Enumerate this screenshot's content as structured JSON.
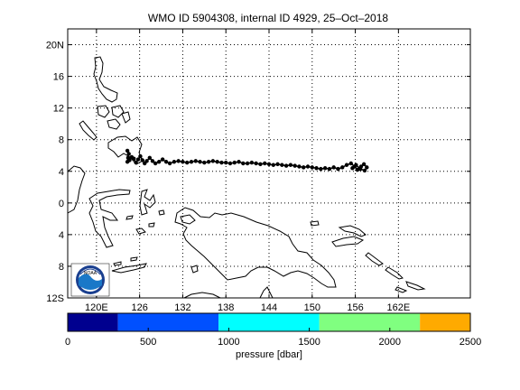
{
  "title": "WMO ID 5904308, internal ID 4929, 25–Oct–2018",
  "map": {
    "lon_range": [
      116,
      172
    ],
    "lat_range": [
      -12,
      22
    ],
    "grid": "dotted",
    "lat_ticks": [
      {
        "value": 20,
        "label": "20N"
      },
      {
        "value": 16,
        "label": "16"
      },
      {
        "value": 12,
        "label": "12"
      },
      {
        "value": 8,
        "label": "8"
      },
      {
        "value": 4,
        "label": "4"
      },
      {
        "value": 0,
        "label": "0"
      },
      {
        "value": -4,
        "label": "4"
      },
      {
        "value": -8,
        "label": "8"
      },
      {
        "value": -12,
        "label": "12S"
      }
    ],
    "lon_ticks": [
      {
        "value": 120,
        "label": "120E"
      },
      {
        "value": 126,
        "label": "126"
      },
      {
        "value": 132,
        "label": "132"
      },
      {
        "value": 138,
        "label": "138"
      },
      {
        "value": 144,
        "label": "144"
      },
      {
        "value": 150,
        "label": "150"
      },
      {
        "value": 156,
        "label": "156"
      },
      {
        "value": 162,
        "label": "162E"
      }
    ],
    "coastline_color": "#000000",
    "logo": {
      "name": "noaa-logo",
      "text": "NOAA"
    }
  },
  "colorbar": {
    "label": "pressure [dbar]",
    "ticks": [
      "0",
      "500",
      "1000",
      "1500",
      "2000",
      "2500"
    ],
    "range": [
      0,
      2500
    ],
    "segments": [
      {
        "from": 0,
        "to": 312,
        "color": "#00008f"
      },
      {
        "from": 312,
        "to": 937,
        "color": "#0050ff"
      },
      {
        "from": 937,
        "to": 1562,
        "color": "#00ffff"
      },
      {
        "from": 1562,
        "to": 2187,
        "color": "#80ff80"
      },
      {
        "from": 2187,
        "to": 2500,
        "color": "#ffaa00"
      }
    ]
  },
  "trajectory": {
    "color": "#000000",
    "points": [
      [
        124.3,
        6.6
      ],
      [
        124.5,
        6.2
      ],
      [
        124.4,
        5.7
      ],
      [
        124.3,
        5.2
      ],
      [
        124.6,
        5.4
      ],
      [
        124.9,
        5.8
      ],
      [
        125.2,
        5.6
      ],
      [
        125.5,
        5.1
      ],
      [
        125.8,
        5.5
      ],
      [
        126.1,
        5.9
      ],
      [
        126.4,
        5.4
      ],
      [
        126.7,
        5.0
      ],
      [
        127.0,
        5.3
      ],
      [
        127.4,
        5.7
      ],
      [
        127.8,
        5.3
      ],
      [
        128.2,
        5.0
      ],
      [
        128.7,
        5.2
      ],
      [
        129.2,
        5.5
      ],
      [
        129.7,
        5.2
      ],
      [
        130.2,
        5.0
      ],
      [
        130.8,
        5.2
      ],
      [
        131.4,
        5.3
      ],
      [
        132.0,
        5.2
      ],
      [
        132.6,
        5.1
      ],
      [
        133.2,
        5.2
      ],
      [
        133.8,
        5.3
      ],
      [
        134.4,
        5.2
      ],
      [
        135.0,
        5.1
      ],
      [
        135.6,
        5.2
      ],
      [
        136.2,
        5.3
      ],
      [
        136.8,
        5.2
      ],
      [
        137.4,
        5.1
      ],
      [
        138.0,
        5.1
      ],
      [
        138.6,
        5.0
      ],
      [
        139.2,
        5.1
      ],
      [
        139.8,
        5.2
      ],
      [
        140.4,
        5.0
      ],
      [
        141.0,
        5.0
      ],
      [
        141.6,
        5.1
      ],
      [
        142.2,
        5.0
      ],
      [
        142.8,
        4.9
      ],
      [
        143.4,
        5.0
      ],
      [
        144.0,
        4.9
      ],
      [
        144.6,
        4.8
      ],
      [
        145.2,
        4.9
      ],
      [
        145.8,
        4.8
      ],
      [
        146.4,
        4.7
      ],
      [
        147.0,
        4.8
      ],
      [
        147.6,
        4.7
      ],
      [
        148.2,
        4.6
      ],
      [
        148.8,
        4.5
      ],
      [
        149.4,
        4.6
      ],
      [
        150.0,
        4.5
      ],
      [
        150.6,
        4.4
      ],
      [
        151.2,
        4.3
      ],
      [
        151.8,
        4.4
      ],
      [
        152.4,
        4.3
      ],
      [
        153.0,
        4.5
      ],
      [
        153.6,
        4.3
      ],
      [
        154.2,
        4.5
      ],
      [
        154.8,
        4.8
      ],
      [
        155.4,
        5.0
      ],
      [
        155.9,
        4.6
      ],
      [
        156.3,
        4.2
      ],
      [
        156.8,
        4.6
      ],
      [
        157.2,
        4.9
      ],
      [
        157.6,
        4.5
      ],
      [
        157.3,
        4.1
      ],
      [
        156.7,
        4.3
      ],
      [
        156.1,
        4.8
      ],
      [
        155.6,
        4.4
      ]
    ]
  }
}
